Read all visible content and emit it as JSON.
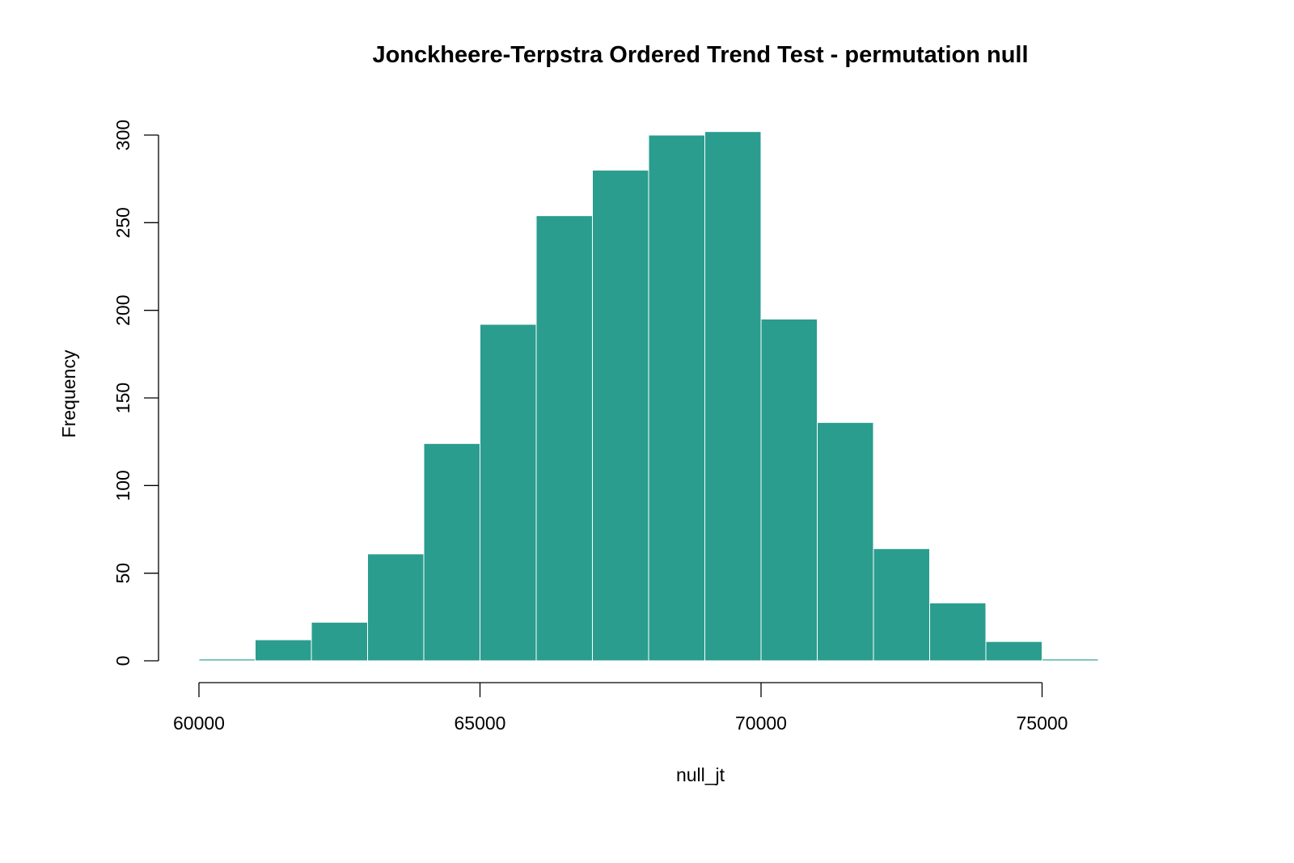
{
  "chart_data": {
    "type": "bar",
    "title": "Jonckheere-Terpstra Ordered Trend Test - permutation null",
    "xlabel": "null_jt",
    "ylabel": "Frequency",
    "bar_color": "#2a9d8f",
    "bin_edges": [
      60000,
      61000,
      62000,
      63000,
      64000,
      65000,
      66000,
      67000,
      68000,
      69000,
      70000,
      71000,
      72000,
      73000,
      74000,
      75000,
      76000,
      77000,
      78000
    ],
    "values": [
      1,
      12,
      22,
      61,
      124,
      192,
      254,
      280,
      300,
      302,
      195,
      136,
      64,
      33,
      11,
      1,
      0,
      0
    ],
    "x_ticks": [
      60000,
      65000,
      70000,
      75000
    ],
    "x_tick_labels": [
      "60000",
      "65000",
      "70000",
      "75000"
    ],
    "y_ticks": [
      0,
      50,
      100,
      150,
      200,
      250,
      300
    ],
    "y_tick_labels": [
      "0",
      "50",
      "100",
      "150",
      "200",
      "250",
      "300"
    ],
    "xlim": [
      60000,
      78000
    ],
    "ylim": [
      0,
      300
    ],
    "grid": false,
    "legend": "none"
  }
}
